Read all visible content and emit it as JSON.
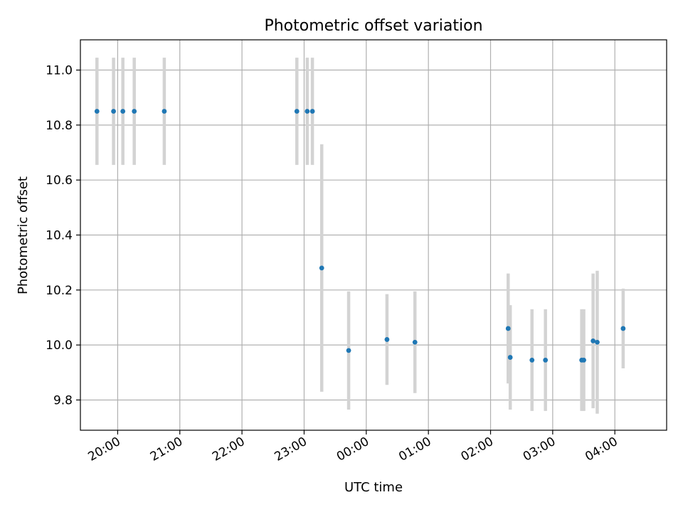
{
  "chart_data": {
    "type": "scatter",
    "title": "Photometric offset variation",
    "xlabel": "UTC time",
    "ylabel": "Photometric offset",
    "x_axis_kind": "time",
    "x_tick_labels": [
      "20:00",
      "21:00",
      "22:00",
      "23:00",
      "00:00",
      "01:00",
      "02:00",
      "03:00",
      "04:00"
    ],
    "y_tick_labels": [
      "9.8",
      "10.0",
      "10.2",
      "10.4",
      "10.6",
      "10.8",
      "11.0"
    ],
    "y_ticks": [
      9.8,
      10.0,
      10.2,
      10.4,
      10.6,
      10.8,
      11.0
    ],
    "ylim": [
      9.69,
      11.11
    ],
    "xlim": [
      "19:24",
      "04:50"
    ],
    "grid": true,
    "colors": {
      "point": "#1f77b4",
      "errorbar": "#d3d3d3",
      "grid": "#b0b0b0"
    },
    "series": [
      {
        "points": [
          {
            "x": "19:40",
            "y": 10.85,
            "err": 0.195
          },
          {
            "x": "19:56",
            "y": 10.85,
            "err": 0.195
          },
          {
            "x": "20:05",
            "y": 10.85,
            "err": 0.195
          },
          {
            "x": "20:16",
            "y": 10.85,
            "err": 0.195
          },
          {
            "x": "20:45",
            "y": 10.85,
            "err": 0.195
          },
          {
            "x": "22:53",
            "y": 10.85,
            "err": 0.195
          },
          {
            "x": "23:03",
            "y": 10.85,
            "err": 0.195
          },
          {
            "x": "23:08",
            "y": 10.85,
            "err": 0.195
          },
          {
            "x": "23:17",
            "y": 10.28,
            "err": 0.45
          },
          {
            "x": "23:43",
            "y": 9.98,
            "err": 0.215
          },
          {
            "x": "00:20",
            "y": 10.02,
            "err": 0.165
          },
          {
            "x": "00:47",
            "y": 10.01,
            "err": 0.185
          },
          {
            "x": "02:17",
            "y": 10.06,
            "err": 0.2
          },
          {
            "x": "02:19",
            "y": 9.955,
            "err": 0.19
          },
          {
            "x": "02:40",
            "y": 9.945,
            "err": 0.185
          },
          {
            "x": "02:53",
            "y": 9.945,
            "err": 0.185
          },
          {
            "x": "03:28",
            "y": 9.945,
            "err": 0.185
          },
          {
            "x": "03:30",
            "y": 9.945,
            "err": 0.185
          },
          {
            "x": "03:39",
            "y": 10.015,
            "err": 0.245
          },
          {
            "x": "03:43",
            "y": 10.01,
            "err": 0.26
          },
          {
            "x": "04:08",
            "y": 10.06,
            "err": 0.145
          }
        ]
      }
    ]
  }
}
